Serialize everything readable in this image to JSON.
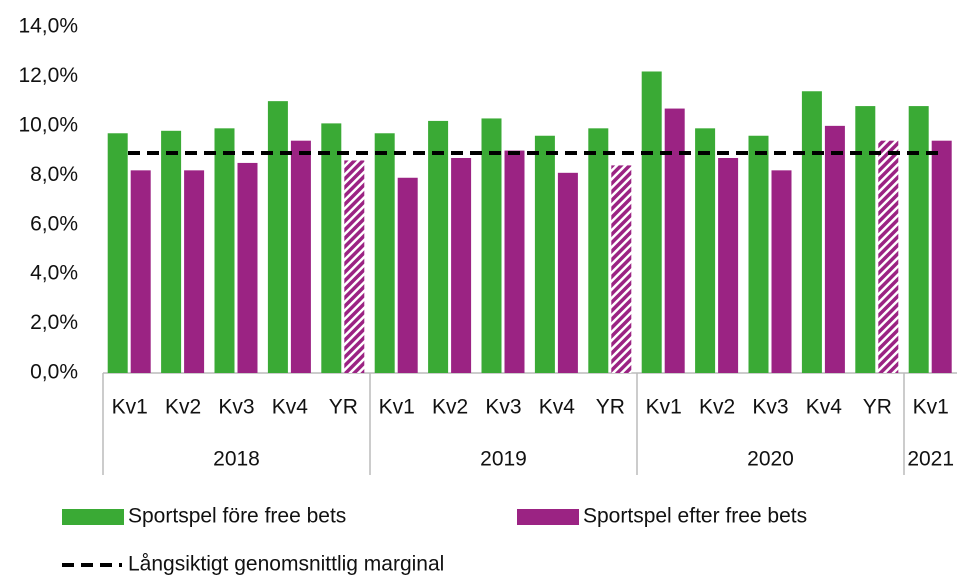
{
  "chart_data": {
    "type": "bar",
    "category_groups": [
      {
        "name": "2018",
        "categories": [
          "Kv1",
          "Kv2",
          "Kv3",
          "Kv4",
          "YR"
        ]
      },
      {
        "name": "2019",
        "categories": [
          "Kv1",
          "Kv2",
          "Kv3",
          "Kv4",
          "YR"
        ]
      },
      {
        "name": "2020",
        "categories": [
          "Kv1",
          "Kv2",
          "Kv3",
          "Kv4",
          "YR"
        ]
      },
      {
        "name": "2021",
        "categories": [
          "Kv1"
        ]
      }
    ],
    "series": [
      {
        "name": "Sportspel före free bets",
        "color": "#3aaa35",
        "values": [
          9.7,
          9.8,
          9.9,
          11.0,
          10.1,
          9.7,
          10.2,
          10.3,
          9.6,
          9.9,
          12.2,
          9.9,
          9.6,
          11.4,
          10.8,
          10.8
        ]
      },
      {
        "name": "Sportspel efter free bets",
        "color": "#9b2383",
        "values": [
          8.2,
          8.2,
          8.5,
          9.4,
          8.6,
          7.9,
          8.7,
          9.0,
          8.1,
          8.4,
          10.7,
          8.7,
          8.2,
          10.0,
          9.4,
          9.4
        ],
        "hatch": [
          false,
          false,
          false,
          false,
          true,
          false,
          false,
          false,
          false,
          true,
          false,
          false,
          false,
          false,
          true,
          false
        ]
      }
    ],
    "reference_lines": [
      {
        "name": "Långsiktigt genomsnittlig marginal",
        "value": 8.9,
        "color": "#000000",
        "style": "dashed"
      }
    ],
    "ylim": [
      0,
      14
    ],
    "yticks": [
      {
        "value": 0,
        "label": "0,0%"
      },
      {
        "value": 2,
        "label": "2,0%"
      },
      {
        "value": 4,
        "label": "4,0%"
      },
      {
        "value": 6,
        "label": "6,0%"
      },
      {
        "value": 8,
        "label": "8,0%"
      },
      {
        "value": 10,
        "label": "10,0%"
      },
      {
        "value": 12,
        "label": "12,0%"
      },
      {
        "value": 14,
        "label": "14,0%"
      }
    ],
    "grid": false
  }
}
